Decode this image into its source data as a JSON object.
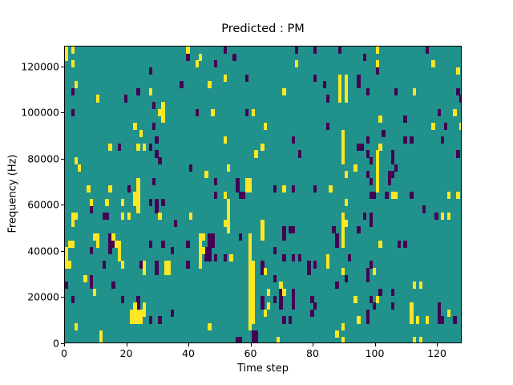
{
  "figure": {
    "title": "Predicted : PM",
    "xlabel": "Time step",
    "ylabel": "Frequency (Hz)"
  },
  "chart_data": {
    "type": "heatmap",
    "title": "Predicted : PM",
    "xlabel": "Time step",
    "ylabel": "Frequency (Hz)",
    "x_ticks": [
      0,
      20,
      40,
      60,
      80,
      100,
      120
    ],
    "y_ticks": [
      0,
      20000,
      40000,
      60000,
      80000,
      100000,
      120000
    ],
    "x_range": [
      0,
      128
    ],
    "y_range_hz": [
      0,
      129000
    ],
    "n_time_steps": 128,
    "n_freq_bins": 43,
    "freq_bin_hz": 3000,
    "legend_position": "none",
    "grid": false,
    "colors": {
      "background_mid": "#21918c",
      "high": "#fde725",
      "low": "#440154",
      "frame": "#000000"
    },
    "value_legend": {
      "background_mid": 0,
      "high": 1,
      "low": -1
    },
    "cells_yellow": [
      [
        0,
        0
      ],
      [
        0,
        1
      ],
      [
        2,
        0
      ],
      [
        2,
        2
      ],
      [
        39,
        0
      ],
      [
        42,
        2
      ],
      [
        3,
        5
      ],
      [
        27,
        6
      ],
      [
        10,
        7
      ],
      [
        31,
        8
      ],
      [
        31,
        9
      ],
      [
        31,
        10
      ],
      [
        30,
        9
      ],
      [
        22,
        11
      ],
      [
        24,
        12
      ],
      [
        14,
        14
      ],
      [
        23,
        14
      ],
      [
        25,
        14
      ],
      [
        3,
        16
      ],
      [
        4,
        17
      ],
      [
        7,
        20
      ],
      [
        14,
        20
      ],
      [
        23,
        19
      ],
      [
        23,
        20
      ],
      [
        8,
        22
      ],
      [
        13,
        22
      ],
      [
        18,
        22
      ],
      [
        22,
        21
      ],
      [
        23,
        21
      ],
      [
        22,
        22
      ],
      [
        23,
        22
      ],
      [
        23,
        23
      ],
      [
        2,
        24
      ],
      [
        3,
        24
      ],
      [
        2,
        25
      ],
      [
        18,
        24
      ],
      [
        20,
        24
      ],
      [
        30,
        24
      ],
      [
        40,
        24
      ],
      [
        9,
        27
      ],
      [
        10,
        27
      ],
      [
        10,
        28
      ],
      [
        15,
        27
      ],
      [
        16,
        28
      ],
      [
        17,
        28
      ],
      [
        17,
        29
      ],
      [
        17,
        30
      ],
      [
        1,
        28
      ],
      [
        2,
        28
      ],
      [
        0,
        29
      ],
      [
        0,
        30
      ],
      [
        0,
        31
      ],
      [
        1,
        31
      ],
      [
        18,
        31
      ],
      [
        25,
        31
      ],
      [
        25,
        32
      ],
      [
        32,
        31
      ],
      [
        33,
        31
      ],
      [
        32,
        32
      ],
      [
        33,
        32
      ],
      [
        6,
        33
      ],
      [
        9,
        35
      ],
      [
        25,
        37
      ],
      [
        25,
        38
      ],
      [
        22,
        37
      ],
      [
        21,
        38
      ],
      [
        22,
        38
      ],
      [
        23,
        38
      ],
      [
        24,
        38
      ],
      [
        21,
        39
      ],
      [
        22,
        39
      ],
      [
        23,
        39
      ],
      [
        24,
        39
      ],
      [
        3,
        40
      ],
      [
        11,
        41
      ],
      [
        11,
        42
      ],
      [
        43,
        1
      ],
      [
        74,
        2
      ],
      [
        51,
        4
      ],
      [
        46,
        5
      ],
      [
        70,
        6
      ],
      [
        47,
        9
      ],
      [
        60,
        9
      ],
      [
        64,
        11
      ],
      [
        51,
        13
      ],
      [
        63,
        14
      ],
      [
        61,
        15
      ],
      [
        52,
        17
      ],
      [
        45,
        18
      ],
      [
        58,
        19
      ],
      [
        59,
        19
      ],
      [
        58,
        20
      ],
      [
        59,
        20
      ],
      [
        70,
        20
      ],
      [
        85,
        20
      ],
      [
        51,
        21
      ],
      [
        52,
        22
      ],
      [
        52,
        23
      ],
      [
        52,
        24
      ],
      [
        51,
        25
      ],
      [
        52,
        25
      ],
      [
        52,
        26
      ],
      [
        43,
        27
      ],
      [
        44,
        27
      ],
      [
        43,
        28
      ],
      [
        43,
        29
      ],
      [
        43,
        30
      ],
      [
        43,
        31
      ],
      [
        44,
        29
      ],
      [
        53,
        30
      ],
      [
        63,
        25
      ],
      [
        63,
        26
      ],
      [
        63,
        27
      ],
      [
        59,
        27
      ],
      [
        59,
        28
      ],
      [
        59,
        29
      ],
      [
        59,
        30
      ],
      [
        59,
        31
      ],
      [
        60,
        31
      ],
      [
        59,
        32
      ],
      [
        60,
        32
      ],
      [
        59,
        33
      ],
      [
        60,
        33
      ],
      [
        59,
        34
      ],
      [
        60,
        34
      ],
      [
        59,
        35
      ],
      [
        60,
        35
      ],
      [
        59,
        36
      ],
      [
        60,
        36
      ],
      [
        59,
        37
      ],
      [
        60,
        37
      ],
      [
        59,
        38
      ],
      [
        60,
        38
      ],
      [
        59,
        39
      ],
      [
        60,
        39
      ],
      [
        59,
        40
      ],
      [
        64,
        32
      ],
      [
        69,
        34
      ],
      [
        70,
        35
      ],
      [
        65,
        35
      ],
      [
        65,
        37
      ],
      [
        64,
        38
      ],
      [
        84,
        30
      ],
      [
        84,
        31
      ],
      [
        46,
        40
      ],
      [
        68,
        42
      ],
      [
        105,
        21
      ],
      [
        126,
        21
      ],
      [
        100,
        0
      ],
      [
        100,
        2
      ],
      [
        118,
        2
      ],
      [
        126,
        3
      ],
      [
        88,
        4
      ],
      [
        88,
        5
      ],
      [
        88,
        6
      ],
      [
        88,
        7
      ],
      [
        90,
        4
      ],
      [
        90,
        5
      ],
      [
        90,
        6
      ],
      [
        90,
        7
      ],
      [
        112,
        6
      ],
      [
        125,
        9
      ],
      [
        127,
        11
      ],
      [
        101,
        10
      ],
      [
        118,
        11
      ],
      [
        89,
        12
      ],
      [
        89,
        13
      ],
      [
        89,
        14
      ],
      [
        89,
        15
      ],
      [
        89,
        16
      ],
      [
        101,
        14
      ],
      [
        93,
        17
      ],
      [
        90,
        18
      ],
      [
        100,
        15
      ],
      [
        100,
        16
      ],
      [
        100,
        17
      ],
      [
        100,
        18
      ],
      [
        100,
        19
      ],
      [
        100,
        20
      ],
      [
        106,
        21
      ],
      [
        123,
        21
      ],
      [
        90,
        22
      ],
      [
        89,
        24
      ],
      [
        89,
        25
      ],
      [
        90,
        25
      ],
      [
        89,
        26
      ],
      [
        89,
        27
      ],
      [
        121,
        24
      ],
      [
        123,
        24
      ],
      [
        89,
        28
      ],
      [
        101,
        28
      ],
      [
        99,
        32
      ],
      [
        89,
        32
      ],
      [
        112,
        34
      ],
      [
        114,
        34
      ],
      [
        93,
        36
      ],
      [
        100,
        36
      ],
      [
        111,
        37
      ],
      [
        111,
        38
      ],
      [
        111,
        39
      ],
      [
        113,
        39
      ],
      [
        116,
        39
      ],
      [
        123,
        38
      ],
      [
        94,
        39
      ],
      [
        89,
        40
      ],
      [
        87,
        41
      ],
      [
        112,
        42
      ],
      [
        114,
        42
      ],
      [
        89,
        42
      ]
    ],
    "cells_dark": [
      [
        39,
        1
      ],
      [
        27,
        3
      ],
      [
        37,
        5
      ],
      [
        2,
        6
      ],
      [
        23,
        6
      ],
      [
        19,
        7
      ],
      [
        28,
        8
      ],
      [
        2,
        9
      ],
      [
        42,
        9
      ],
      [
        28,
        11
      ],
      [
        29,
        13
      ],
      [
        17,
        14
      ],
      [
        27,
        14
      ],
      [
        29,
        15
      ],
      [
        30,
        16
      ],
      [
        40,
        17
      ],
      [
        20,
        20
      ],
      [
        28,
        19
      ],
      [
        8,
        23
      ],
      [
        27,
        22
      ],
      [
        29,
        22
      ],
      [
        31,
        22
      ],
      [
        29,
        23
      ],
      [
        12,
        24
      ],
      [
        13,
        24
      ],
      [
        35,
        25
      ],
      [
        14,
        27
      ],
      [
        15,
        28
      ],
      [
        14,
        28
      ],
      [
        14,
        29
      ],
      [
        8,
        29
      ],
      [
        27,
        28
      ],
      [
        31,
        28
      ],
      [
        39,
        28
      ],
      [
        34,
        29
      ],
      [
        12,
        31
      ],
      [
        24,
        31
      ],
      [
        29,
        31
      ],
      [
        29,
        32
      ],
      [
        39,
        31
      ],
      [
        8,
        33
      ],
      [
        8,
        34
      ],
      [
        0,
        34
      ],
      [
        15,
        34
      ],
      [
        2,
        36
      ],
      [
        18,
        36
      ],
      [
        23,
        36
      ],
      [
        23,
        37
      ],
      [
        27,
        39
      ],
      [
        30,
        39
      ],
      [
        34,
        38
      ],
      [
        55,
        42
      ],
      [
        56,
        42
      ],
      [
        60,
        41
      ],
      [
        61,
        41
      ],
      [
        60,
        42
      ],
      [
        61,
        42
      ],
      [
        51,
        0
      ],
      [
        80,
        0
      ],
      [
        74,
        0
      ],
      [
        116,
        0
      ],
      [
        54,
        1
      ],
      [
        48,
        2
      ],
      [
        58,
        4
      ],
      [
        80,
        4
      ],
      [
        83,
        5
      ],
      [
        84,
        7
      ],
      [
        58,
        9
      ],
      [
        84,
        11
      ],
      [
        73,
        13
      ],
      [
        75,
        15
      ],
      [
        48,
        19
      ],
      [
        55,
        19
      ],
      [
        55,
        20
      ],
      [
        67,
        20
      ],
      [
        73,
        20
      ],
      [
        80,
        20
      ],
      [
        56,
        21
      ],
      [
        57,
        21
      ],
      [
        48,
        21
      ],
      [
        46,
        27
      ],
      [
        47,
        27
      ],
      [
        46,
        28
      ],
      [
        47,
        28
      ],
      [
        56,
        27
      ],
      [
        45,
        29
      ],
      [
        46,
        29
      ],
      [
        45,
        30
      ],
      [
        46,
        30
      ],
      [
        48,
        30
      ],
      [
        51,
        30
      ],
      [
        63,
        31
      ],
      [
        63,
        32
      ],
      [
        67,
        29
      ],
      [
        70,
        26
      ],
      [
        70,
        27
      ],
      [
        72,
        26
      ],
      [
        73,
        26
      ],
      [
        70,
        30
      ],
      [
        73,
        30
      ],
      [
        75,
        30
      ],
      [
        78,
        31
      ],
      [
        80,
        31
      ],
      [
        78,
        32
      ],
      [
        67,
        33
      ],
      [
        67,
        36
      ],
      [
        69,
        35
      ],
      [
        69,
        36
      ],
      [
        69,
        37
      ],
      [
        73,
        35
      ],
      [
        73,
        36
      ],
      [
        73,
        37
      ],
      [
        63,
        36
      ],
      [
        63,
        37
      ],
      [
        70,
        39
      ],
      [
        72,
        39
      ],
      [
        79,
        36
      ],
      [
        80,
        37
      ],
      [
        79,
        38
      ],
      [
        88,
        0
      ],
      [
        96,
        1
      ],
      [
        100,
        3
      ],
      [
        94,
        4
      ],
      [
        94,
        5
      ],
      [
        97,
        6
      ],
      [
        106,
        6
      ],
      [
        126,
        6
      ],
      [
        127,
        7
      ],
      [
        120,
        9
      ],
      [
        109,
        10
      ],
      [
        122,
        11
      ],
      [
        102,
        12
      ],
      [
        109,
        13
      ],
      [
        111,
        13
      ],
      [
        121,
        13
      ],
      [
        97,
        13
      ],
      [
        94,
        14
      ],
      [
        95,
        14
      ],
      [
        97,
        15
      ],
      [
        98,
        16
      ],
      [
        105,
        15
      ],
      [
        105,
        16
      ],
      [
        106,
        17
      ],
      [
        97,
        18
      ],
      [
        98,
        19
      ],
      [
        104,
        18
      ],
      [
        105,
        18
      ],
      [
        104,
        19
      ],
      [
        126,
        15
      ],
      [
        99,
        21
      ],
      [
        103,
        21
      ],
      [
        98,
        21
      ],
      [
        111,
        21
      ],
      [
        115,
        23
      ],
      [
        96,
        24
      ],
      [
        98,
        24
      ],
      [
        98,
        25
      ],
      [
        119,
        24
      ],
      [
        94,
        26
      ],
      [
        86,
        26
      ],
      [
        87,
        27
      ],
      [
        87,
        28
      ],
      [
        107,
        28
      ],
      [
        109,
        28
      ],
      [
        91,
        30
      ],
      [
        98,
        31
      ],
      [
        97,
        32
      ],
      [
        97,
        33
      ],
      [
        90,
        33
      ],
      [
        87,
        34
      ],
      [
        101,
        35
      ],
      [
        105,
        35
      ],
      [
        98,
        36
      ],
      [
        99,
        37
      ],
      [
        105,
        37
      ],
      [
        120,
        37
      ],
      [
        120,
        38
      ],
      [
        120,
        39
      ],
      [
        121,
        39
      ],
      [
        125,
        39
      ],
      [
        97,
        38
      ],
      [
        97,
        39
      ]
    ]
  }
}
